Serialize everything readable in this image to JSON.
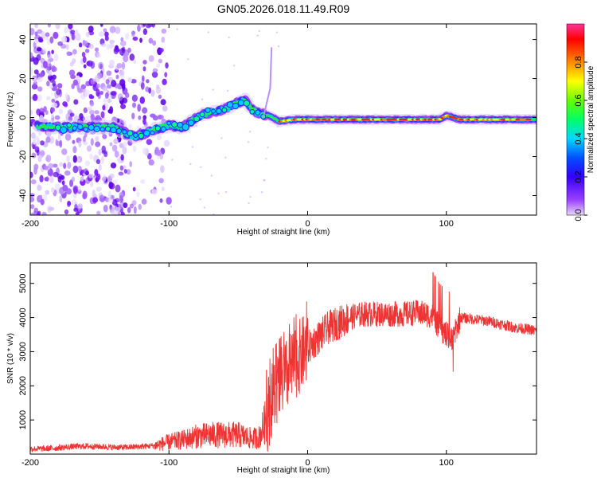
{
  "figure": {
    "title": "GN05.2026.018.11.49.R09"
  },
  "chart_data": [
    {
      "type": "heatmap",
      "xlabel": "Height of straight line (km)",
      "ylabel": "Frequency (Hz)",
      "xlim": [
        -200,
        165
      ],
      "ylim": [
        -50,
        48
      ],
      "xticks": [
        -200,
        -100,
        0,
        100
      ],
      "xtick_labels": [
        "-200",
        "-100",
        "0",
        "100"
      ],
      "yticks": [
        -40,
        -20,
        0,
        20,
        40
      ],
      "ytick_labels": [
        "-40",
        "-20",
        "0",
        "20",
        "40"
      ],
      "colorbar": {
        "label": "Normalized spectral amplitude",
        "range": [
          0,
          1
        ],
        "ticks": [
          0.0,
          0.2,
          0.4,
          0.6,
          0.8
        ],
        "tick_labels": [
          "0.0",
          "0.2",
          "0.4",
          "0.6",
          "0.8"
        ],
        "colors": [
          "#e8d8f8",
          "#7a00ff",
          "#0000ff",
          "#00c8ff",
          "#00ff66",
          "#ffff00",
          "#ff8800",
          "#ff0000",
          "#ff3399"
        ]
      },
      "ridge": {
        "x": [
          -200,
          -180,
          -160,
          -140,
          -125,
          -110,
          -100,
          -90,
          -80,
          -70,
          -60,
          -52,
          -45,
          -40,
          -35,
          -28,
          -20,
          -10,
          0,
          20,
          40,
          60,
          80,
          95,
          100,
          110,
          130,
          150,
          165
        ],
        "y": [
          -4,
          -5,
          -5,
          -5,
          -10,
          -6,
          -4,
          -5,
          0,
          3,
          4,
          7,
          9,
          4,
          2,
          1,
          -2,
          -1,
          -1,
          -1,
          -1,
          -1,
          -1,
          -1,
          1,
          -1,
          -1,
          -1,
          -1
        ]
      }
    },
    {
      "type": "line",
      "xlabel": "Height of straight line (km)",
      "ylabel": "SNR (10 * v/v)",
      "xlim": [
        -200,
        165
      ],
      "ylim": [
        0,
        5600
      ],
      "xticks": [
        -200,
        -100,
        0,
        100
      ],
      "xtick_labels": [
        "-200",
        "-100",
        "0",
        "100"
      ],
      "yticks": [
        1000,
        2000,
        3000,
        4000,
        5000
      ],
      "ytick_labels": [
        "1000",
        "2000",
        "3000",
        "4000",
        "5000"
      ],
      "color": "#ee3333",
      "series": [
        {
          "name": "SNR",
          "x": [
            -200,
            -190,
            -180,
            -170,
            -160,
            -150,
            -140,
            -130,
            -120,
            -110,
            -100,
            -90,
            -80,
            -70,
            -60,
            -50,
            -40,
            -35,
            -30,
            -25,
            -20,
            -15,
            -10,
            -5,
            0,
            5,
            10,
            15,
            20,
            25,
            30,
            40,
            50,
            60,
            70,
            80,
            90,
            95,
            100,
            105,
            110,
            120,
            130,
            140,
            150,
            160,
            165
          ],
          "y": [
            150,
            160,
            180,
            220,
            230,
            220,
            200,
            200,
            220,
            250,
            350,
            420,
            520,
            560,
            560,
            560,
            450,
            500,
            1000,
            1700,
            2000,
            2300,
            2600,
            2900,
            3100,
            3300,
            3500,
            3700,
            3800,
            3900,
            4000,
            4100,
            4100,
            4100,
            4100,
            4150,
            4050,
            3700,
            3500,
            3400,
            4000,
            3950,
            3900,
            3800,
            3700,
            3650,
            3600
          ]
        }
      ]
    }
  ]
}
